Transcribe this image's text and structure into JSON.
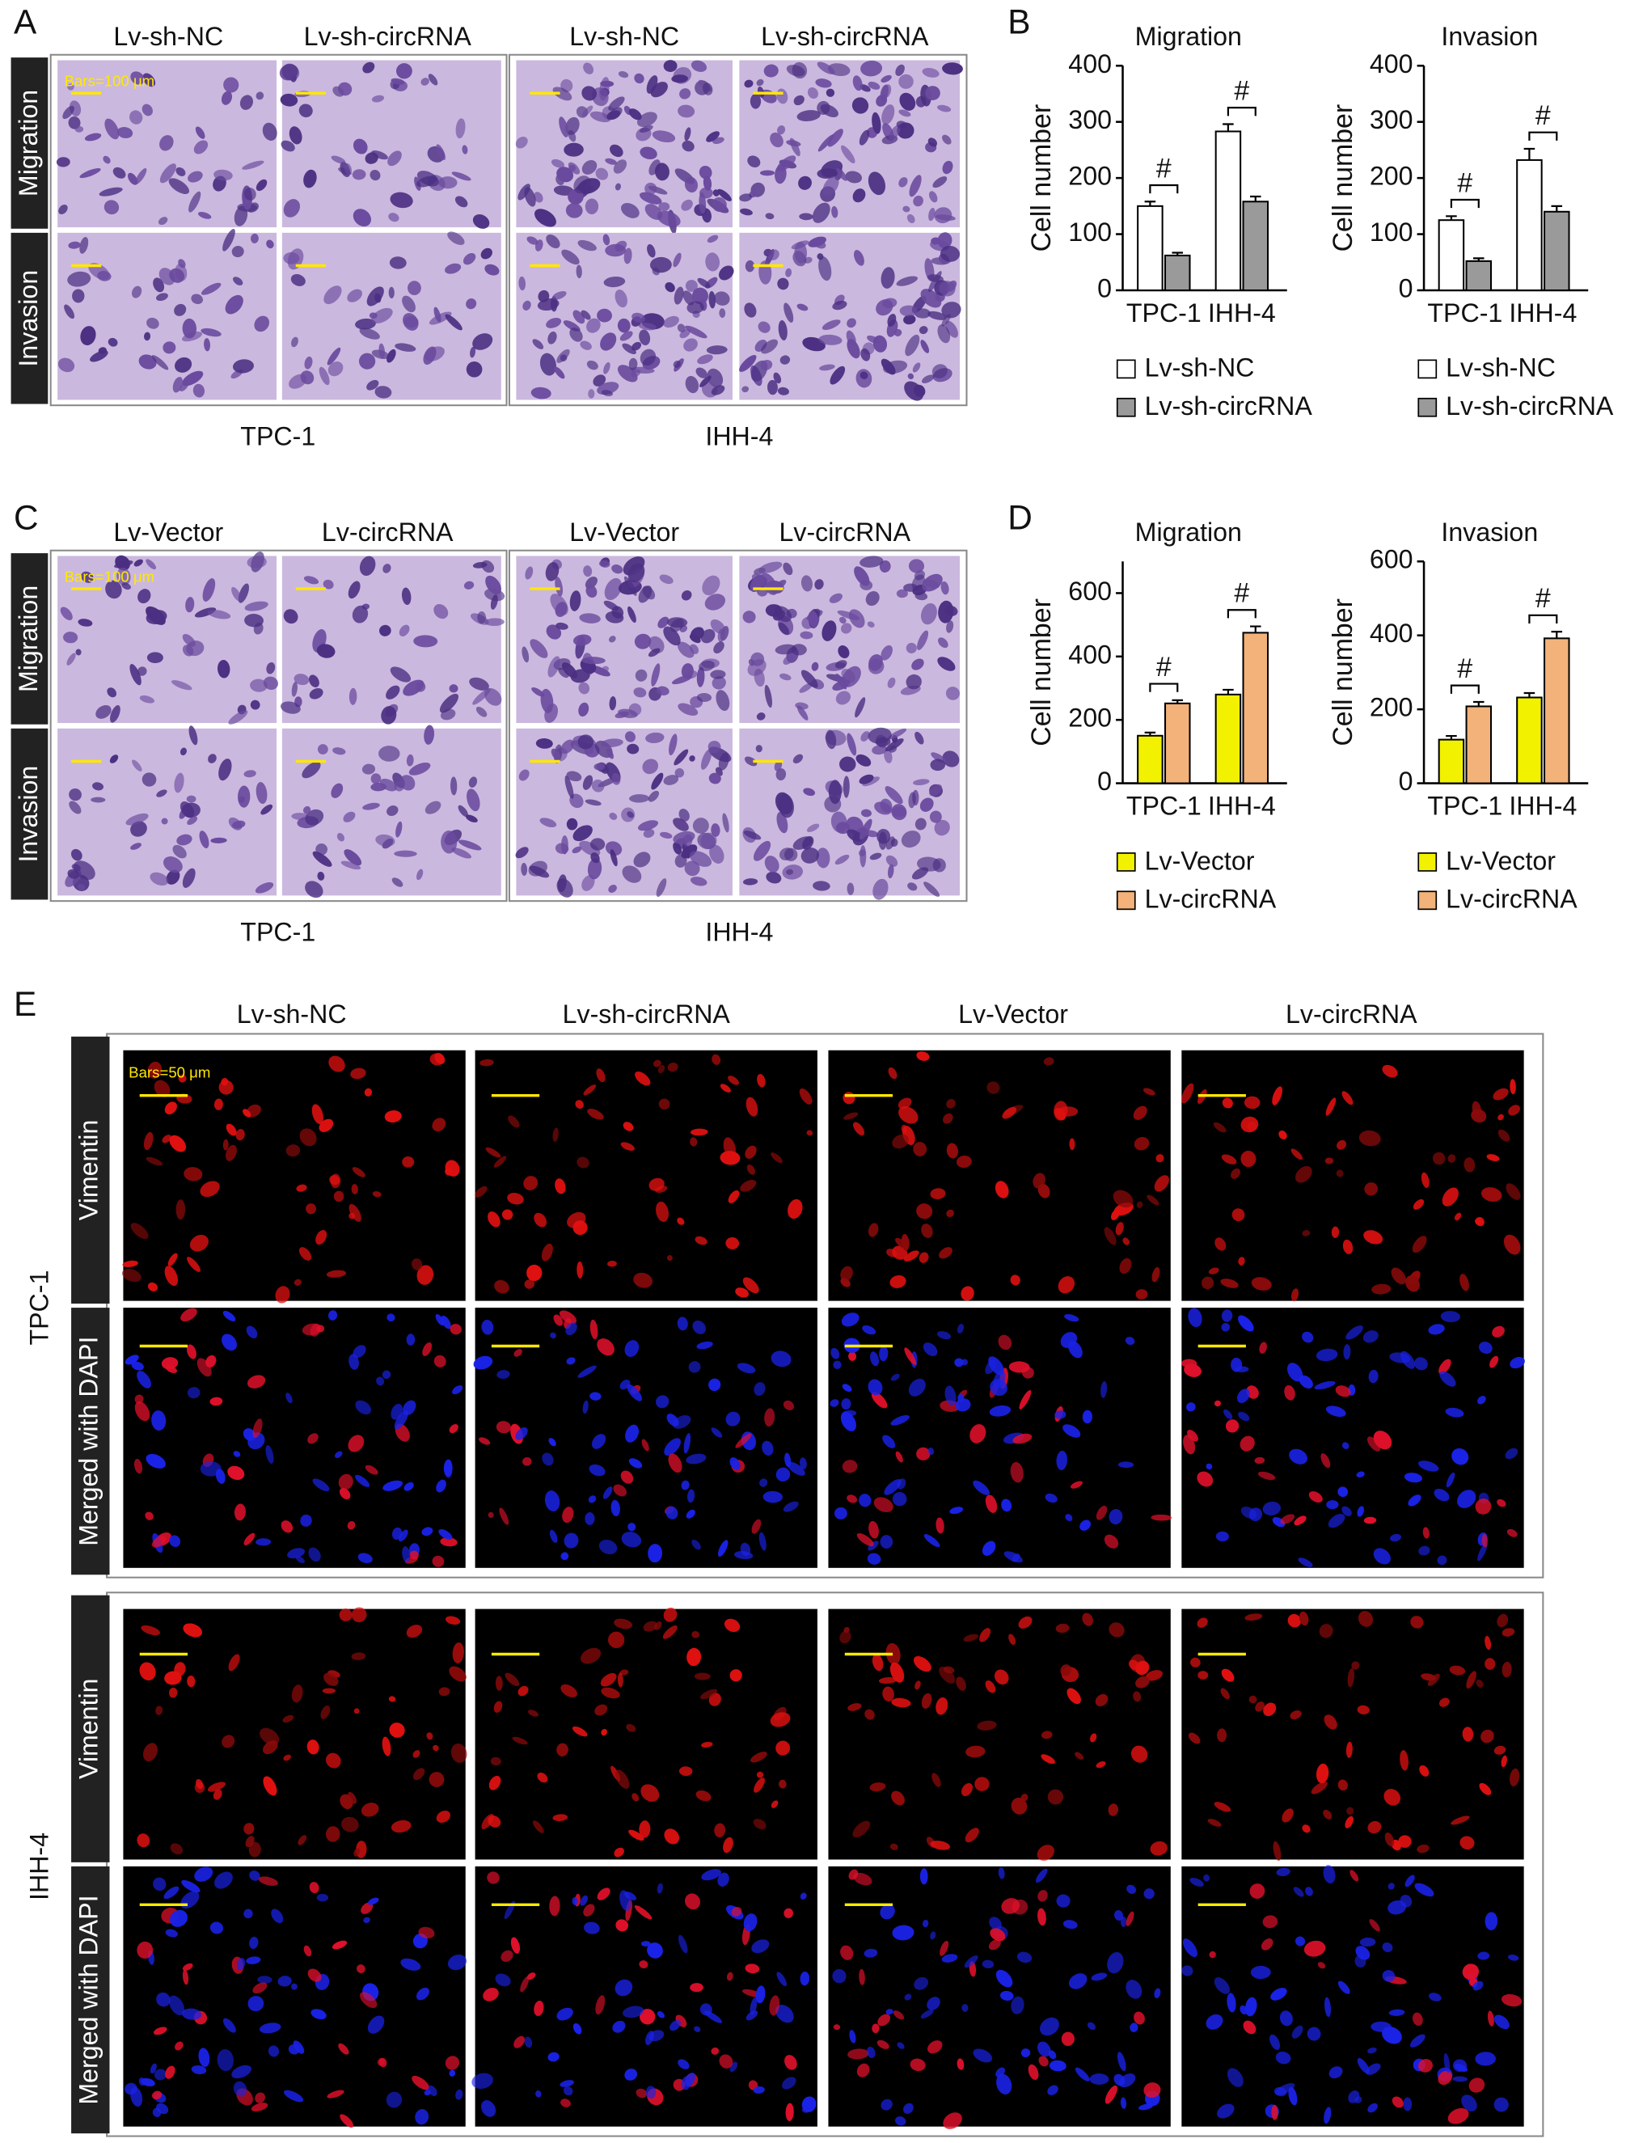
{
  "panels": {
    "a": {
      "label": "A",
      "columns": [
        "Lv-sh-NC",
        "Lv-sh-circRNA",
        "Lv-sh-NC",
        "Lv-sh-circRNA"
      ],
      "rows": [
        "Migration",
        "Invasion"
      ],
      "cell_lines": [
        "TPC-1",
        "IHH-4"
      ],
      "scale_bar": "Bars=100 μm"
    },
    "b": {
      "label": "B"
    },
    "c": {
      "label": "C",
      "columns": [
        "Lv-Vector",
        "Lv-circRNA",
        "Lv-Vector",
        "Lv-circRNA"
      ],
      "rows": [
        "Migration",
        "Invasion"
      ],
      "cell_lines": [
        "TPC-1",
        "IHH-4"
      ],
      "scale_bar": "Bars=100 μm"
    },
    "d": {
      "label": "D"
    },
    "e": {
      "label": "E",
      "columns": [
        "Lv-sh-NC",
        "Lv-sh-circRNA",
        "Lv-Vector",
        "Lv-circRNA"
      ],
      "rows": [
        "Vimentin",
        "Merged with DAPI"
      ],
      "cell_lines": [
        "TPC-1",
        "IHH-4"
      ],
      "scale_bar": "Bars=50 μm"
    }
  },
  "chart_data": [
    {
      "type": "bar",
      "title": "Migration",
      "y_label": "Cell number",
      "categories": [
        "TPC-1",
        "IHH-4"
      ],
      "series": [
        {
          "name": "Lv-sh-NC",
          "color": "#ffffff",
          "values": [
            150,
            283
          ],
          "errors": [
            8,
            13
          ]
        },
        {
          "name": "Lv-sh-circRNA",
          "color": "#9a9a9a",
          "values": [
            62,
            158
          ],
          "errors": [
            5,
            9
          ]
        }
      ],
      "annotations": [
        "#",
        "#"
      ],
      "ylim": [
        0,
        400
      ],
      "yticks": [
        0,
        100,
        200,
        300,
        400
      ]
    },
    {
      "type": "bar",
      "title": "Invasion",
      "y_label": "Cell number",
      "categories": [
        "TPC-1",
        "IHH-4"
      ],
      "series": [
        {
          "name": "Lv-sh-NC",
          "color": "#ffffff",
          "values": [
            125,
            232
          ],
          "errors": [
            7,
            20
          ]
        },
        {
          "name": "Lv-sh-circRNA",
          "color": "#9a9a9a",
          "values": [
            52,
            140
          ],
          "errors": [
            5,
            10
          ]
        }
      ],
      "annotations": [
        "#",
        "#"
      ],
      "ylim": [
        0,
        400
      ],
      "yticks": [
        0,
        100,
        200,
        300,
        400
      ]
    },
    {
      "type": "bar",
      "title": "Migration",
      "y_label": "Cell number",
      "categories": [
        "TPC-1",
        "IHH-4"
      ],
      "series": [
        {
          "name": "Lv-Vector",
          "color": "#f2f200",
          "values": [
            150,
            280
          ],
          "errors": [
            10,
            15
          ]
        },
        {
          "name": "Lv-circRNA",
          "color": "#f2b27a",
          "values": [
            252,
            475
          ],
          "errors": [
            10,
            20
          ]
        }
      ],
      "annotations": [
        "#",
        "#"
      ],
      "ylim": [
        0,
        700
      ],
      "yticks": [
        0,
        200,
        400,
        600
      ]
    },
    {
      "type": "bar",
      "title": "Invasion",
      "y_label": "Cell number",
      "categories": [
        "TPC-1",
        "IHH-4"
      ],
      "series": [
        {
          "name": "Lv-Vector",
          "color": "#f2f200",
          "values": [
            118,
            232
          ],
          "errors": [
            10,
            12
          ]
        },
        {
          "name": "Lv-circRNA",
          "color": "#f2b27a",
          "values": [
            208,
            392
          ],
          "errors": [
            12,
            18
          ]
        }
      ],
      "annotations": [
        "#",
        "#"
      ],
      "ylim": [
        0,
        600
      ],
      "yticks": [
        0,
        200,
        400,
        600
      ]
    }
  ]
}
